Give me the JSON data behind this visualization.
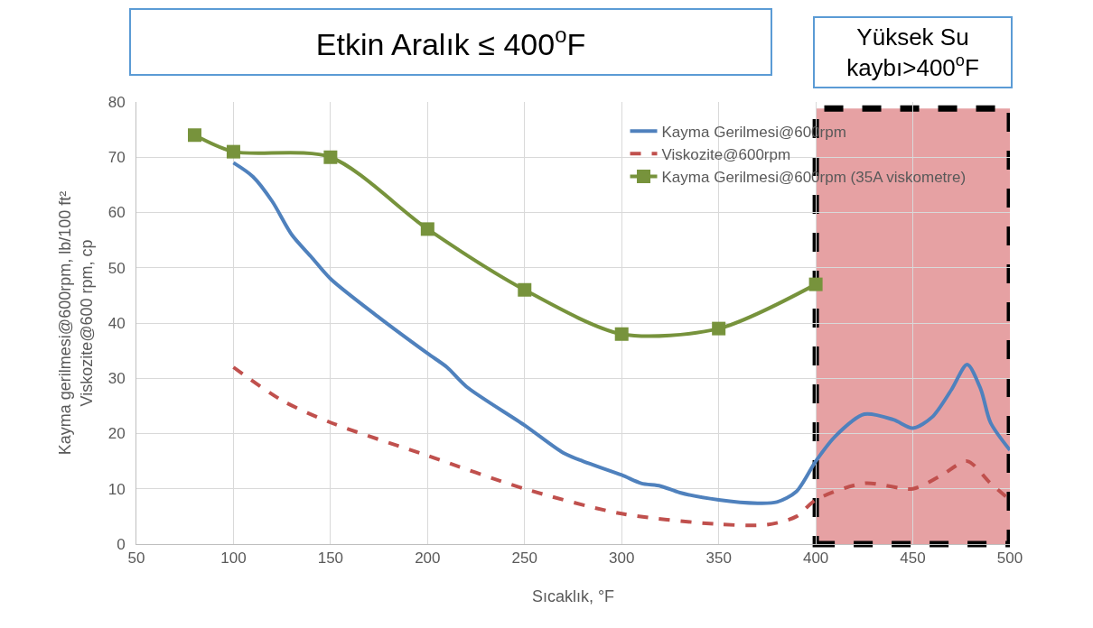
{
  "chart_data": {
    "type": "line",
    "xlabel": "Sıcaklık, °F",
    "ylabel": "Kayma gerilmesi@600rpm, lb/100 ft²\nViskozite@600 rpm, cp",
    "xlim": [
      50,
      500
    ],
    "xticks": [
      50,
      100,
      150,
      200,
      250,
      300,
      350,
      400,
      450,
      500
    ],
    "ylim": [
      0,
      80
    ],
    "yticks": [
      0,
      10,
      20,
      30,
      40,
      50,
      60,
      70,
      80
    ],
    "grid": true,
    "legend": "top right",
    "series": [
      {
        "name": "Kayma Gerilmesi@600rpm",
        "color": "#4f81bd",
        "line_style": "solid",
        "marker": "none",
        "x": [
          100,
          110,
          120,
          130,
          140,
          150,
          175,
          200,
          210,
          220,
          250,
          270,
          280,
          300,
          310,
          320,
          330,
          350,
          370,
          380,
          390,
          400,
          410,
          425,
          440,
          450,
          460,
          470,
          478,
          485,
          490,
          500
        ],
        "values": [
          69,
          66.5,
          62,
          56,
          52,
          48,
          41,
          34.5,
          32,
          28.5,
          21.5,
          16.5,
          15,
          12.5,
          11,
          10.5,
          9.3,
          8,
          7.4,
          7.6,
          9.5,
          15,
          19.5,
          23.5,
          22.5,
          21,
          23,
          28,
          32.5,
          28,
          22,
          17
        ]
      },
      {
        "name": "Viskozite@600rpm",
        "color": "#c0504d",
        "line_style": "dashed",
        "marker": "none",
        "x": [
          100,
          125,
          150,
          200,
          250,
          300,
          350,
          375,
          390,
          400,
          425,
          450,
          465,
          478,
          490,
          500
        ],
        "values": [
          32,
          26,
          22,
          16,
          10,
          5.5,
          3.6,
          3.5,
          5,
          8,
          11,
          10,
          12.5,
          15,
          11,
          8
        ]
      },
      {
        "name": "Kayma Gerilmesi@600rpm (35A viskometre)",
        "color": "#77933c",
        "line_style": "solid",
        "marker": "square",
        "x": [
          80,
          100,
          150,
          200,
          250,
          300,
          350,
          400
        ],
        "values": [
          74,
          71,
          70,
          57,
          46,
          38,
          39,
          47
        ]
      }
    ],
    "bands": [
      {
        "axis": "x",
        "from": 400,
        "to": 500,
        "label": "Yüksek Su kaybı>400$^{o}$F",
        "color": "#e6a1a3"
      }
    ],
    "annotations": [
      "Etkin Aralık ≤ 400$^{o}$F"
    ]
  }
}
